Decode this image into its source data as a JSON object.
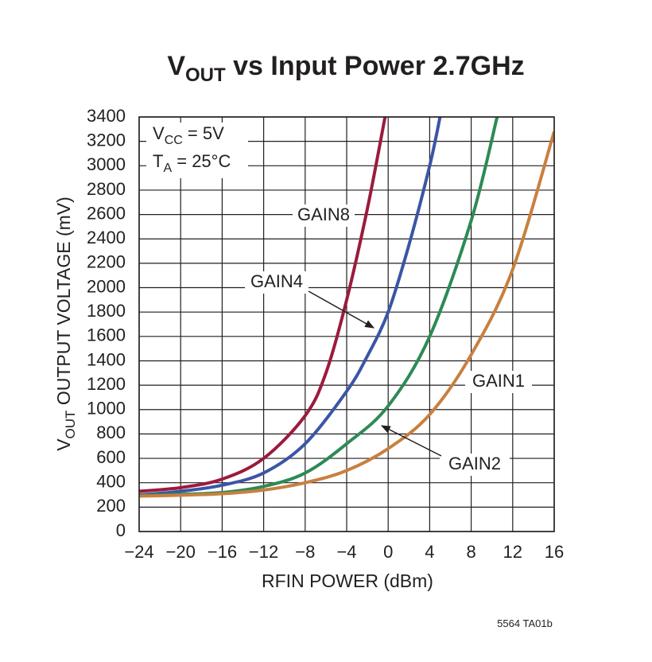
{
  "chart_data": {
    "type": "line",
    "title": [
      "V",
      "OUT",
      " vs Input Power 2.7GHz"
    ],
    "y_label": [
      "V",
      "OUT",
      " OUTPUT VOLTAGE (mV)"
    ],
    "x_label": "RFIN POWER (dBm)",
    "annotations": {
      "vcc": [
        "V",
        "CC",
        " = 5V"
      ],
      "ta": [
        "T",
        "A",
        " = 25°C"
      ]
    },
    "note": "5564 TA01b",
    "xlim": [
      -24,
      16
    ],
    "xticks": [
      {
        "value": -24,
        "label": "−24"
      },
      {
        "value": -20,
        "label": "−20"
      },
      {
        "value": -16,
        "label": "−16"
      },
      {
        "value": -12,
        "label": "−12"
      },
      {
        "value": -8,
        "label": "−8"
      },
      {
        "value": -4,
        "label": "−4"
      },
      0,
      4,
      8,
      12,
      16
    ],
    "ylim": [
      0,
      3400
    ],
    "yticks": [
      0,
      200,
      400,
      600,
      800,
      1000,
      1200,
      1400,
      1600,
      1800,
      2000,
      2200,
      2400,
      2600,
      2800,
      3000,
      3200,
      3400
    ],
    "grid": true,
    "series": [
      {
        "name": "GAIN8",
        "color": "#9b1b3c",
        "x": [
          -24,
          -20,
          -16,
          -12,
          -8,
          -6,
          -4,
          -2,
          -0.3
        ],
        "values": [
          330,
          360,
          430,
          600,
          950,
          1300,
          1900,
          2650,
          3400
        ]
      },
      {
        "name": "GAIN4",
        "color": "#3b55a6",
        "x": [
          -24,
          -20,
          -16,
          -12,
          -8,
          -4,
          -2,
          0,
          2,
          4,
          5
        ],
        "values": [
          300,
          330,
          380,
          480,
          720,
          1150,
          1440,
          1800,
          2350,
          3000,
          3400
        ]
      },
      {
        "name": "GAIN2",
        "color": "#2e8a55",
        "x": [
          -24,
          -20,
          -16,
          -12,
          -8,
          -4,
          0,
          4,
          8,
          10.5
        ],
        "values": [
          295,
          305,
          320,
          370,
          480,
          720,
          1030,
          1600,
          2550,
          3400
        ]
      },
      {
        "name": "GAIN1",
        "color": "#c8803e",
        "x": [
          -24,
          -20,
          -16,
          -12,
          -8,
          -4,
          0,
          4,
          8,
          12,
          16
        ],
        "values": [
          290,
          298,
          310,
          340,
          400,
          500,
          680,
          960,
          1450,
          2150,
          3280
        ]
      }
    ]
  }
}
